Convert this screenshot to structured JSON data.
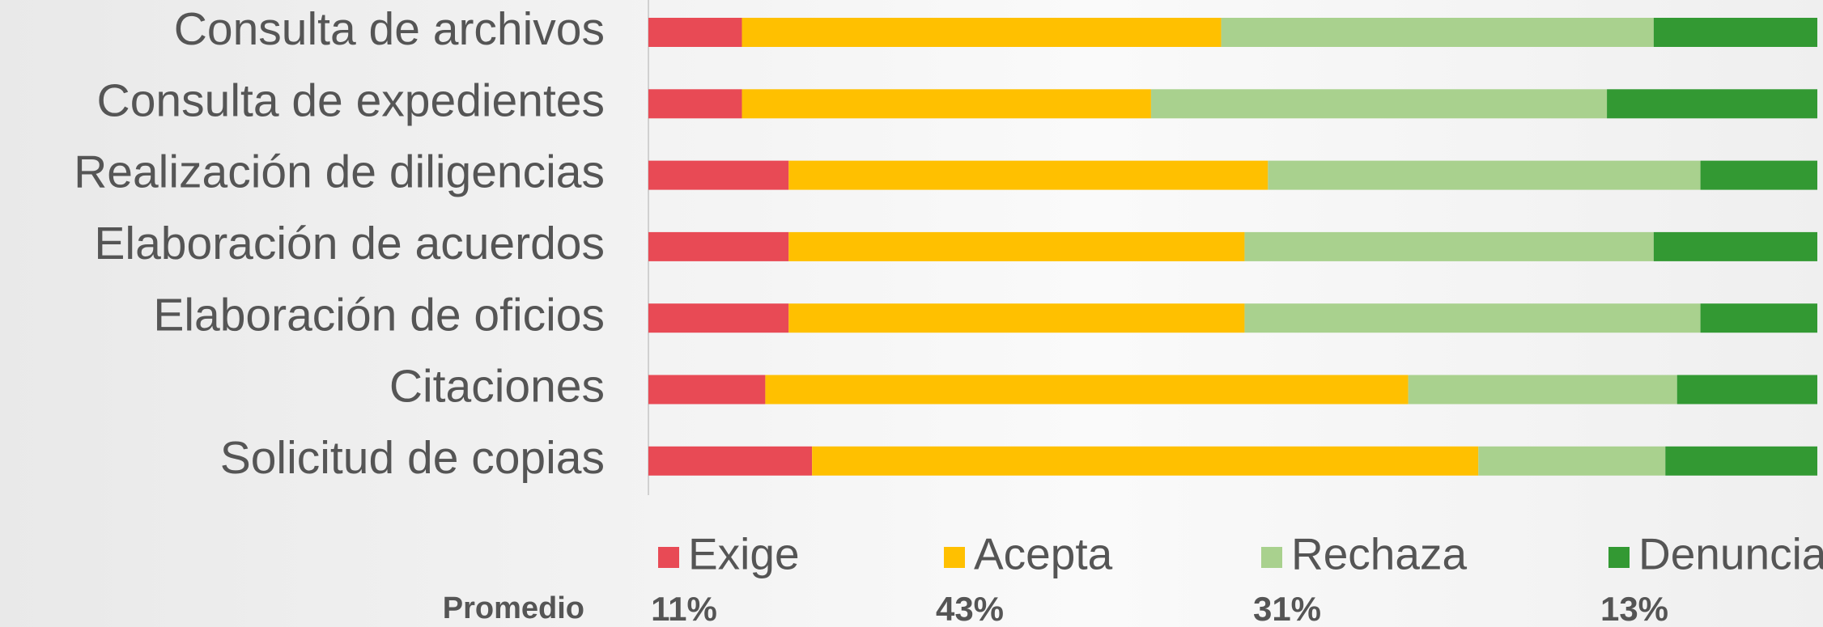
{
  "chart_data": {
    "type": "stacked-bar-horizontal",
    "categories": [
      "Consulta de archivos",
      "Consulta de expedientes",
      "Realización de diligencias",
      "Elaboración de acuerdos",
      "Elaboración de oficios",
      "Citaciones",
      "Solicitud de copias"
    ],
    "series": [
      {
        "name": "Exige",
        "color": "#e84a55",
        "values": [
          8,
          8,
          12,
          12,
          12,
          10,
          14
        ]
      },
      {
        "name": "Acepta",
        "color": "#ffc000",
        "values": [
          41,
          35,
          41,
          39,
          39,
          55,
          57
        ]
      },
      {
        "name": "Rechaza",
        "color": "#a9d18e",
        "values": [
          37,
          39,
          37,
          35,
          39,
          23,
          16
        ]
      },
      {
        "name": "Denuncia",
        "color": "#339933",
        "values": [
          14,
          18,
          10,
          14,
          10,
          12,
          13
        ]
      }
    ],
    "xlim": [
      0,
      100
    ],
    "summary": {
      "label": "Promedio",
      "values": [
        11,
        43,
        31,
        13
      ],
      "value_labels": [
        "11%",
        "43%",
        "31%",
        "13%"
      ]
    }
  }
}
